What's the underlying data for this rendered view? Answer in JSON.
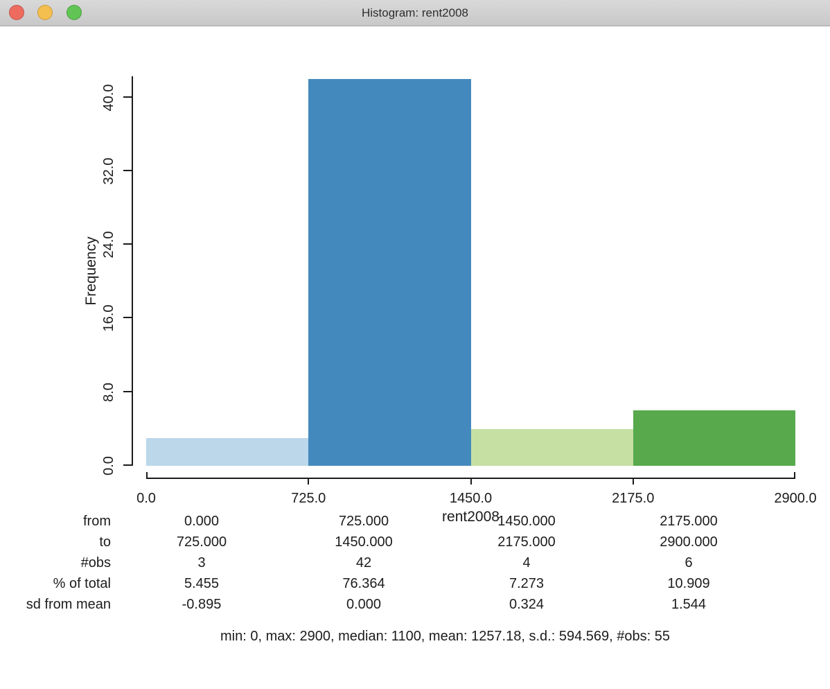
{
  "window": {
    "title": "Histogram: rent2008"
  },
  "chart_data": {
    "type": "bar",
    "title": "Histogram: rent2008",
    "xlabel": "rent2008",
    "ylabel": "Frequency",
    "xlim": [
      0,
      2900
    ],
    "ylim": [
      0,
      42.3
    ],
    "grid": false,
    "legend": false,
    "bin_edges": [
      0,
      725,
      1450,
      2175,
      2900
    ],
    "values": [
      3,
      42,
      4,
      6
    ],
    "bar_colors": [
      "#bcd7ea",
      "#4489bd",
      "#c6e0a4",
      "#57a94c"
    ],
    "x_tick_labels": [
      "0.0",
      "725.0",
      "1450.0",
      "2175.0",
      "2900.0"
    ],
    "y_tick_labels": [
      "0.0",
      "8.0",
      "16.0",
      "24.0",
      "32.0",
      "40.0"
    ],
    "y_tick_values": [
      0,
      8,
      16,
      24,
      32,
      40
    ],
    "axis_color": "#1a1a1a"
  },
  "table": {
    "rows": [
      {
        "label": "from",
        "values": [
          "0.000",
          "725.000",
          "1450.000",
          "2175.000"
        ]
      },
      {
        "label": "to",
        "values": [
          "725.000",
          "1450.000",
          "2175.000",
          "2900.000"
        ]
      },
      {
        "label": "#obs",
        "values": [
          "3",
          "42",
          "4",
          "6"
        ]
      },
      {
        "label": "% of total",
        "values": [
          "5.455",
          "76.364",
          "7.273",
          "10.909"
        ]
      },
      {
        "label": "sd from mean",
        "values": [
          "-0.895",
          "0.000",
          "0.324",
          "1.544"
        ]
      }
    ]
  },
  "summary_line": "min: 0, max: 2900, median: 1100, mean: 1257.18, s.d.: 594.569, #obs: 55"
}
